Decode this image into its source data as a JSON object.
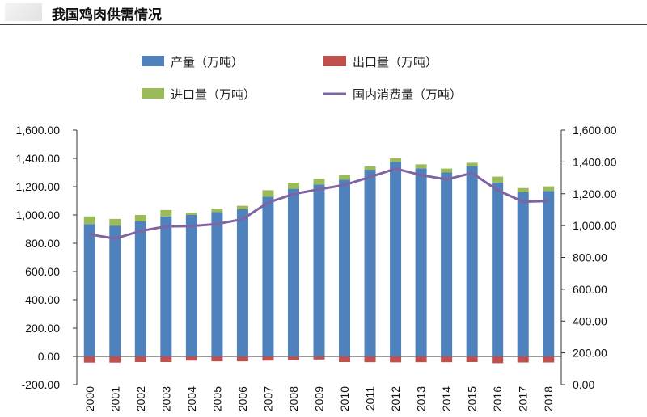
{
  "header": {
    "title": "我国鸡肉供需情况"
  },
  "chart_data": {
    "type": "bar",
    "stacked": true,
    "categories": [
      "2000",
      "2001",
      "2002",
      "2003",
      "2004",
      "2005",
      "2006",
      "2007",
      "2008",
      "2009",
      "2010",
      "2011",
      "2012",
      "2013",
      "2014",
      "2015",
      "2016",
      "2017",
      "2018"
    ],
    "series": [
      {
        "name": "产量（万吨）",
        "type": "bar",
        "axis": "left",
        "color": "#4f81bd",
        "values": [
          935,
          925,
          955,
          990,
          1000,
          1020,
          1040,
          1130,
          1185,
          1215,
          1250,
          1320,
          1375,
          1330,
          1300,
          1345,
          1230,
          1160,
          1170
        ]
      },
      {
        "name": "出口量（万吨）",
        "type": "bar",
        "axis": "left",
        "color": "#c0504d",
        "values": [
          -44,
          -44,
          -40,
          -40,
          -30,
          -35,
          -35,
          -30,
          -25,
          -22,
          -40,
          -41,
          -42,
          -41,
          -41,
          -40,
          -48,
          -43,
          -43
        ]
      },
      {
        "name": "进口量（万吨）",
        "type": "bar",
        "axis": "left",
        "color": "#9bbb59",
        "values": [
          55,
          47,
          45,
          45,
          15,
          25,
          25,
          45,
          43,
          40,
          32,
          23,
          25,
          28,
          28,
          24,
          41,
          30,
          32
        ]
      },
      {
        "name": "国内消费量（万吨）",
        "type": "line",
        "axis": "right",
        "color": "#8064a2",
        "values": [
          945,
          918,
          966,
          995,
          997,
          1010,
          1040,
          1145,
          1198,
          1228,
          1255,
          1305,
          1358,
          1317,
          1290,
          1330,
          1222,
          1150,
          1155
        ]
      }
    ],
    "y_left": {
      "ylim": [
        -200,
        1600
      ],
      "tick_labels": [
        "1,600.00",
        "1,400.00",
        "1,200.00",
        "1,000.00",
        "800.00",
        "600.00",
        "400.00",
        "200.00",
        "0.00",
        "-200.00"
      ]
    },
    "y_right": {
      "ylim": [
        0,
        1600
      ],
      "tick_labels": [
        "1,600.00",
        "1,400.00",
        "1,200.00",
        "1,000.00",
        "800.00",
        "600.00",
        "400.00",
        "200.00",
        "0.00"
      ]
    },
    "grid": false,
    "legend_position": "top"
  }
}
